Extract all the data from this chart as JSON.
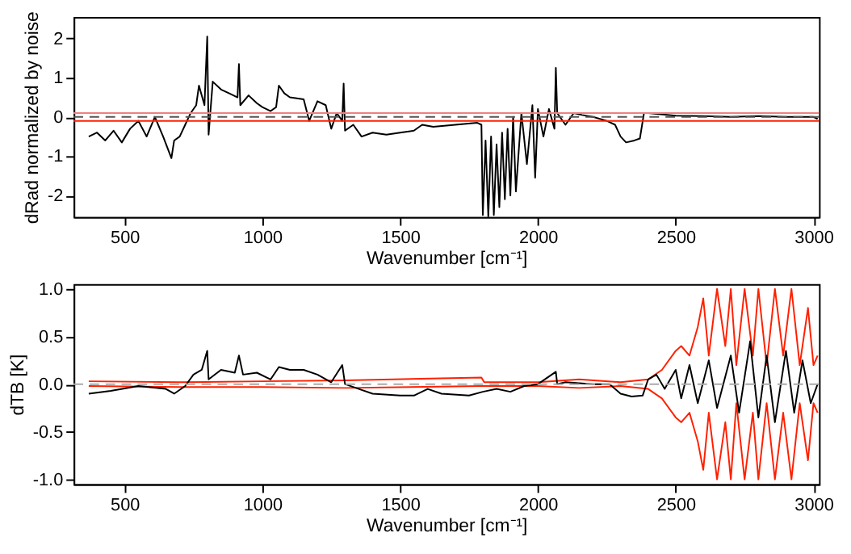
{
  "chart_data": [
    {
      "type": "line",
      "xlabel": "Wavenumber [cm⁻¹]",
      "ylabel": "dRad normalized by noise",
      "xlim": [
        315,
        3020
      ],
      "ylim": [
        -2.55,
        2.55
      ],
      "xticks": [
        500,
        1000,
        1500,
        2000,
        2500,
        3000
      ],
      "yticks": [
        -2,
        -1,
        0,
        1,
        2
      ],
      "marker": "none",
      "line_style": "solid",
      "grid": false,
      "series": [
        {
          "color": "#000000",
          "x": [
            370,
            400,
            430,
            460,
            490,
            520,
            550,
            580,
            610,
            640,
            670,
            680,
            700,
            720,
            740,
            760,
            770,
            790,
            800,
            805,
            820,
            850,
            880,
            910,
            915,
            920,
            950,
            980,
            1000,
            1030,
            1050,
            1060,
            1080,
            1100,
            1150,
            1170,
            1200,
            1230,
            1250,
            1270,
            1290,
            1295,
            1300,
            1330,
            1360,
            1400,
            1450,
            1500,
            1550,
            1580,
            1620,
            1700,
            1780,
            1795,
            1800,
            1810,
            1820,
            1830,
            1840,
            1850,
            1860,
            1870,
            1880,
            1890,
            1900,
            1910,
            1920,
            1940,
            1960,
            1980,
            1990,
            2000,
            2020,
            2040,
            2060,
            2065,
            2070,
            2100,
            2130,
            2160,
            2200,
            2250,
            2280,
            2300,
            2320,
            2350,
            2370,
            2385,
            2400,
            2500,
            2600,
            2700,
            2800,
            2900,
            3000,
            3015
          ],
          "values": [
            -0.5,
            -0.4,
            -0.6,
            -0.35,
            -0.65,
            -0.3,
            -0.1,
            -0.5,
            0.0,
            -0.5,
            -1.05,
            -0.6,
            -0.5,
            -0.2,
            0.1,
            0.3,
            0.8,
            0.3,
            2.05,
            -0.45,
            0.9,
            0.7,
            0.6,
            0.5,
            1.35,
            0.3,
            0.55,
            0.35,
            0.25,
            0.15,
            0.25,
            0.8,
            0.6,
            0.5,
            0.45,
            -0.1,
            0.4,
            0.3,
            -0.3,
            0.1,
            -0.1,
            0.85,
            -0.35,
            -0.2,
            -0.5,
            -0.4,
            -0.45,
            -0.4,
            -0.35,
            -0.2,
            -0.25,
            -0.2,
            -0.15,
            -0.2,
            -2.5,
            -0.6,
            -2.55,
            -0.5,
            -2.5,
            -0.7,
            -2.3,
            -0.4,
            -2.1,
            -0.3,
            -2.0,
            0.0,
            -1.9,
            0.1,
            -1.2,
            0.3,
            -1.55,
            0.2,
            -0.5,
            0.2,
            -0.3,
            1.25,
            0.1,
            -0.2,
            0.1,
            0.05,
            0.0,
            -0.1,
            -0.2,
            -0.5,
            -0.65,
            -0.6,
            -0.55,
            0.1,
            0.1,
            0.03,
            0.02,
            0.0,
            0.02,
            0.0,
            0.0,
            -0.05
          ]
        }
      ],
      "ref_lines": [
        {
          "axis": "y",
          "value": 0.1,
          "color": "#f08080",
          "line_style": "solid"
        },
        {
          "axis": "y",
          "value": -0.1,
          "color": "#ff2000",
          "line_style": "solid"
        },
        {
          "axis": "y",
          "value": 0,
          "color": "#555555",
          "line_style": "dashed"
        }
      ]
    },
    {
      "type": "line",
      "xlabel": "Wavenumber [cm⁻¹]",
      "ylabel": "dTB [K]",
      "xlim": [
        315,
        3020
      ],
      "ylim": [
        -1.05,
        1.05
      ],
      "xticks": [
        500,
        1000,
        1500,
        2000,
        2500,
        3000
      ],
      "yticks": [
        {
          "value": -1,
          "label": "-1.0"
        },
        -0.5,
        {
          "value": 0,
          "label": "0.0"
        },
        0.5,
        {
          "value": 1,
          "label": "1.0"
        }
      ],
      "marker": "none",
      "line_style": "solid",
      "grid": false,
      "series": [
        {
          "color": "#ff2000",
          "x": [
            370,
            700,
            1000,
            1300,
            1795,
            1805,
            2000,
            2150,
            2300,
            2400,
            2450,
            2500,
            2520,
            2550,
            2580,
            2600,
            2620,
            2650,
            2680,
            2700,
            2720,
            2750,
            2780,
            2800,
            2830,
            2860,
            2890,
            2920,
            2950,
            2980,
            3000,
            3015
          ],
          "values": [
            0.03,
            0.02,
            0.03,
            0.04,
            0.07,
            0.02,
            0.02,
            0.05,
            0.02,
            0.05,
            0.15,
            0.35,
            0.4,
            0.3,
            0.6,
            0.9,
            0.3,
            1.0,
            0.4,
            1.0,
            0.2,
            1.0,
            0.3,
            1.0,
            0.2,
            1.0,
            0.3,
            1.0,
            0.2,
            0.8,
            0.2,
            0.3
          ]
        },
        {
          "color": "#ff2000",
          "x": [
            370,
            700,
            1000,
            1300,
            1795,
            1805,
            2000,
            2150,
            2300,
            2400,
            2450,
            2500,
            2520,
            2550,
            2580,
            2600,
            2620,
            2650,
            2680,
            2700,
            2720,
            2750,
            2780,
            2800,
            2830,
            2860,
            2890,
            2920,
            2950,
            2980,
            3000,
            3015
          ],
          "values": [
            -0.02,
            -0.03,
            -0.03,
            -0.04,
            -0.02,
            -0.02,
            -0.02,
            -0.04,
            -0.02,
            -0.05,
            -0.15,
            -0.35,
            -0.4,
            -0.3,
            -0.6,
            -0.9,
            -0.3,
            -1.0,
            -0.4,
            -1.0,
            -0.2,
            -1.0,
            -0.3,
            -1.0,
            -0.2,
            -1.0,
            -0.3,
            -1.0,
            -0.2,
            -0.8,
            -0.2,
            -0.3
          ]
        },
        {
          "color": "#000000",
          "x": [
            370,
            450,
            550,
            650,
            680,
            720,
            750,
            780,
            800,
            805,
            850,
            900,
            915,
            930,
            980,
            1030,
            1060,
            1100,
            1150,
            1200,
            1250,
            1290,
            1300,
            1350,
            1400,
            1500,
            1550,
            1600,
            1650,
            1750,
            1800,
            1850,
            1900,
            1950,
            2000,
            2065,
            2070,
            2100,
            2200,
            2260,
            2300,
            2340,
            2380,
            2400,
            2430,
            2460,
            2500,
            2520,
            2550,
            2580,
            2620,
            2650,
            2700,
            2730,
            2770,
            2800,
            2830,
            2860,
            2900,
            2930,
            2960,
            2990,
            3015
          ],
          "values": [
            -0.1,
            -0.07,
            -0.02,
            -0.05,
            -0.1,
            -0.02,
            0.1,
            0.15,
            0.35,
            0.05,
            0.15,
            0.12,
            0.3,
            0.1,
            0.12,
            0.05,
            0.18,
            0.15,
            0.15,
            0.1,
            0.02,
            0.2,
            0.0,
            -0.05,
            -0.1,
            -0.12,
            -0.12,
            -0.05,
            -0.1,
            -0.12,
            -0.08,
            -0.05,
            -0.08,
            -0.02,
            0.0,
            0.13,
            0.0,
            0.02,
            0.0,
            0.0,
            -0.1,
            -0.13,
            -0.12,
            0.05,
            0.1,
            -0.05,
            0.15,
            -0.15,
            0.2,
            -0.2,
            0.25,
            -0.25,
            0.3,
            -0.3,
            0.45,
            -0.35,
            0.3,
            -0.4,
            0.35,
            -0.3,
            0.25,
            -0.2,
            0.0
          ]
        }
      ],
      "ref_lines": [
        {
          "axis": "y",
          "value": 0,
          "color": "#aaaaaa",
          "line_style": "dashed"
        }
      ]
    }
  ]
}
